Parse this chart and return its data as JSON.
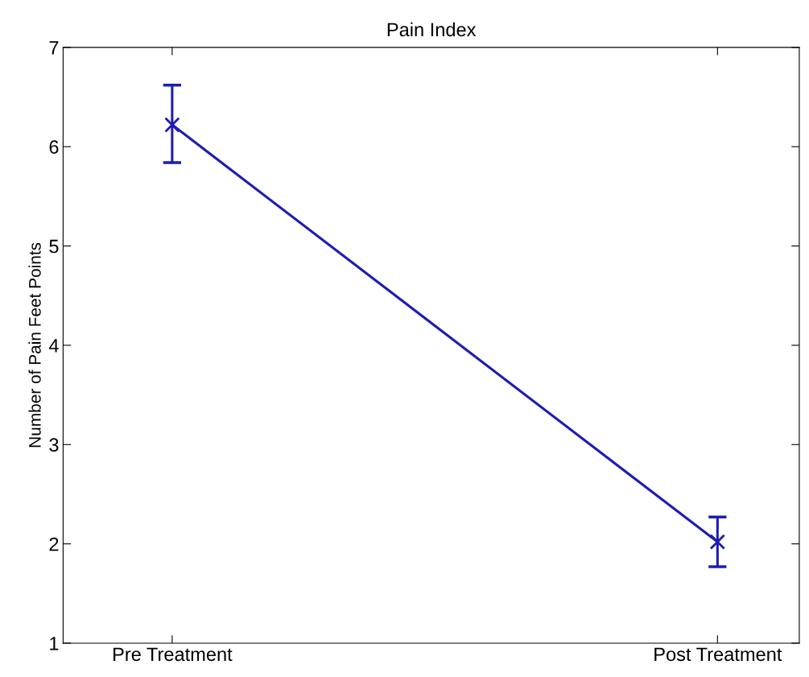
{
  "chart_data": {
    "type": "line",
    "title": "Pain Index",
    "ylabel": "Number of Pain Feet Points",
    "categories": [
      "Pre Treatment",
      "Post Treatment"
    ],
    "series": [
      {
        "color": "#1c1cb4",
        "values": [
          6.22,
          2.02
        ],
        "errors": [
          [
            5.84,
            6.62
          ],
          [
            1.77,
            2.27
          ]
        ]
      }
    ],
    "ylim": [
      1,
      7
    ],
    "yticks": [
      1,
      2,
      3,
      4,
      5,
      6,
      7
    ],
    "marker": "cross",
    "line_style": "solid",
    "grid": false,
    "legend": false
  }
}
